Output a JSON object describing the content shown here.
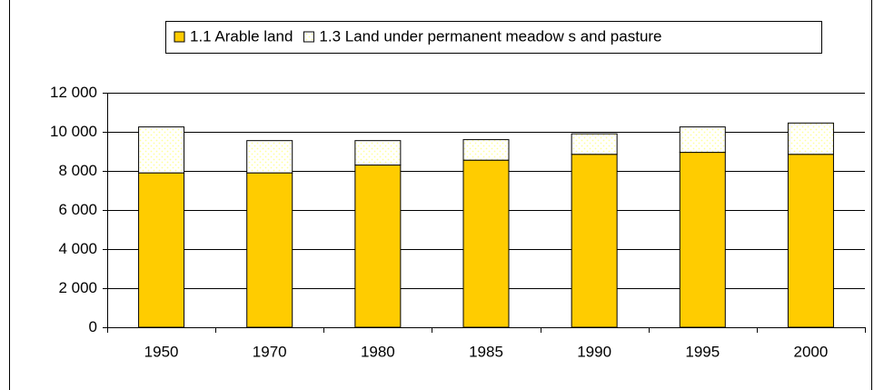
{
  "chart_data": {
    "type": "stacked_bar",
    "categories": [
      "1950",
      "1970",
      "1980",
      "1985",
      "1990",
      "1995",
      "2000"
    ],
    "series": [
      {
        "name": "1.1 Arable land",
        "color": "#ffcc00",
        "values": [
          7900,
          7900,
          8300,
          8550,
          8850,
          8950,
          8850
        ]
      },
      {
        "name": "1.3 Land under permanent meadow s and pasture",
        "color": "#ffff99",
        "values": [
          2350,
          1650,
          1250,
          1050,
          1050,
          1300,
          1600
        ]
      }
    ],
    "ylim": [
      0,
      12000
    ],
    "yticks": [
      0,
      {
        "value": 2000,
        "label": "2 000"
      },
      {
        "value": 4000,
        "label": "4 000"
      },
      {
        "value": 6000,
        "label": "6 000"
      },
      {
        "value": 8000,
        "label": "8 000"
      },
      {
        "value": 10000,
        "label": "10 000"
      },
      {
        "value": 12000,
        "label": "12 000"
      }
    ],
    "grid": true,
    "legend": "top"
  }
}
